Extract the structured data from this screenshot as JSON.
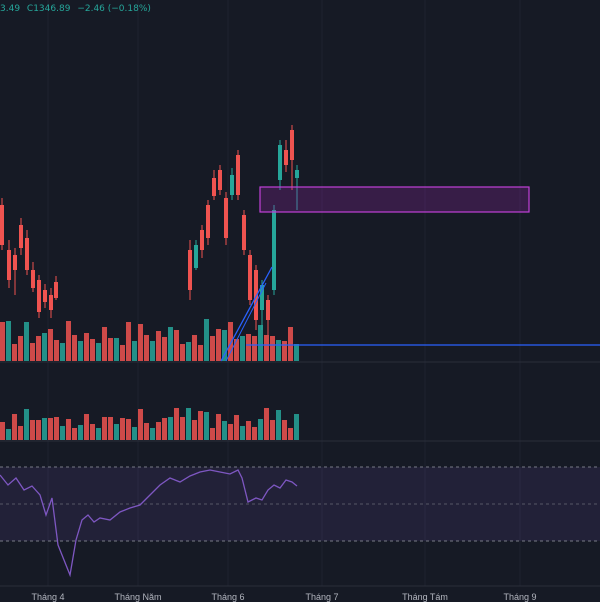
{
  "legend": {
    "prev_close_fragment": "3.49",
    "close_text": "C1346.89",
    "change_text": "−2.46 (−0.18%)"
  },
  "x_axis_labels": [
    "Tháng 4",
    "Tháng Năm",
    "Tháng 6",
    "Tháng 7",
    "Tháng Tám",
    "Tháng 9"
  ],
  "colors": {
    "background": "#161a25",
    "up": "#26a69a",
    "down": "#ef5350",
    "rsi_line": "#7e57c2",
    "trend_line": "#2962ff",
    "zone_border": "#9c27b0"
  },
  "chart_data": {
    "type": "candlestick",
    "indicators": [
      "volume",
      "volume",
      "RSI"
    ],
    "rsi_band": [
      30,
      70
    ]
  }
}
